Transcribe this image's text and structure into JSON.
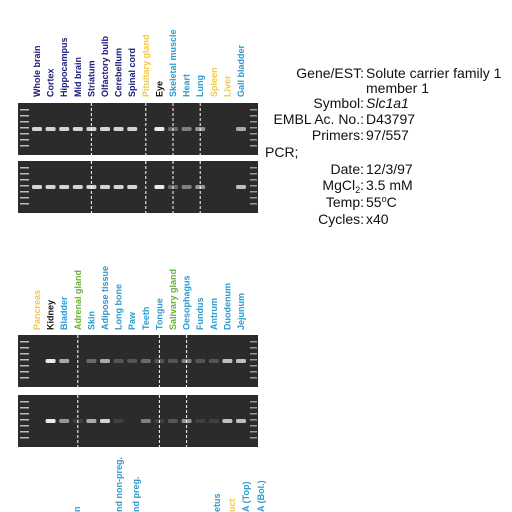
{
  "panels": [
    {
      "lanes": [
        {
          "label": "Whole brain",
          "color": "#1a1a7a"
        },
        {
          "label": "Cortex",
          "color": "#1a1a7a"
        },
        {
          "label": "Hippocampus",
          "color": "#1a1a7a"
        },
        {
          "label": "Mid brain",
          "color": "#1a1a7a"
        },
        {
          "label": "Striatum",
          "color": "#1a1a7a"
        },
        {
          "label": "Olfactory bulb",
          "color": "#1a1a7a"
        },
        {
          "label": "Cerebellum",
          "color": "#1a1a7a"
        },
        {
          "label": "Spinal cord",
          "color": "#1a1a7a"
        },
        {
          "label": "Pituitary gland",
          "color": "#f0c848"
        },
        {
          "label": "Eye",
          "color": "#111111"
        },
        {
          "label": "Skeletal muscle",
          "color": "#2a9ad0"
        },
        {
          "label": "Heart",
          "color": "#2a9ad0"
        },
        {
          "label": "Lung",
          "color": "#2a9ad0"
        },
        {
          "label": "Spleen",
          "color": "#f0c848"
        },
        {
          "label": "Liver",
          "color": "#f0c848"
        },
        {
          "label": "Gall bladder",
          "color": "#2a9ad0"
        }
      ]
    },
    {
      "lanes": [
        {
          "label": "Pancreas",
          "color": "#f0c848"
        },
        {
          "label": "Kidney",
          "color": "#111111"
        },
        {
          "label": "Bladder",
          "color": "#2a9ad0"
        },
        {
          "label": "Adrenal gland",
          "color": "#6ab030"
        },
        {
          "label": "Skin",
          "color": "#2a9ad0"
        },
        {
          "label": "Adipose tissue",
          "color": "#2a9ad0"
        },
        {
          "label": "Long bone",
          "color": "#2a9ad0"
        },
        {
          "label": "Paw",
          "color": "#2a9ad0"
        },
        {
          "label": "Teeth",
          "color": "#2a9ad0"
        },
        {
          "label": "Tongue",
          "color": "#2a9ad0"
        },
        {
          "label": "Salivary gland",
          "color": "#6ab030"
        },
        {
          "label": "Oesophagus",
          "color": "#2a9ad0"
        },
        {
          "label": "Fundus",
          "color": "#2a9ad0"
        },
        {
          "label": "Antrum",
          "color": "#2a9ad0"
        },
        {
          "label": "Duodenum",
          "color": "#2a9ad0"
        },
        {
          "label": "Jejunum",
          "color": "#2a9ad0"
        }
      ]
    }
  ],
  "cut_labels": [
    {
      "label": "n",
      "color": "#2a9ad0"
    },
    {
      "label": "nd non-preg.",
      "color": "#2a9ad0"
    },
    {
      "label": "nd preg.",
      "color": "#2a9ad0"
    },
    {
      "label": "etus",
      "color": "#2a9ad0"
    },
    {
      "label": "uct",
      "color": "#f0c848"
    },
    {
      "label": "A (Top)",
      "color": "#2a9ad0"
    },
    {
      "label": "A (Bol.)",
      "color": "#2a9ad0"
    }
  ],
  "info": {
    "gene_label": "Gene/EST:",
    "gene_line1": "Solute carrier family 1",
    "gene_line2": "member 1",
    "symbol_label": "Symbol:",
    "symbol": "Slc1a1",
    "embl_label": "EMBL Ac. No.:",
    "embl": "D43797",
    "primers_label": "Primers:",
    "primers": "97/557",
    "pcr": "PCR;",
    "date_label": "Date:",
    "date": "12/3/97",
    "mg_label_main": "MgCl",
    "mg_label_sub": "2",
    "mg_colon": ":",
    "mg": "3.5 mM",
    "temp_label": "Temp:",
    "temp_main": "55",
    "temp_sup": "o",
    "temp_unit": "C",
    "cycles_label": "Cycles:",
    "cycles": "x40"
  }
}
